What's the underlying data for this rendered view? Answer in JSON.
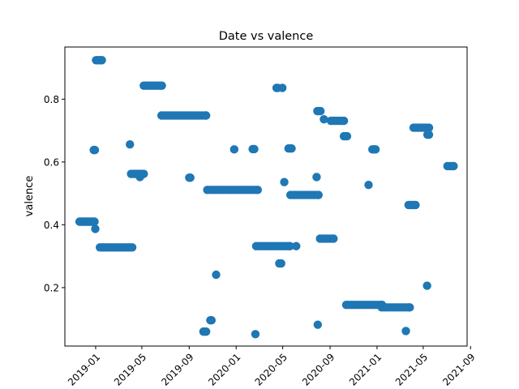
{
  "chart_data": {
    "type": "scatter",
    "title": "Date vs valence",
    "xlabel": "",
    "ylabel": "valence",
    "x_axis": "date",
    "xlim": [
      "2018-10-13",
      "2021-08-23"
    ],
    "ylim": [
      0.014,
      0.966
    ],
    "xticks": [
      "2019-01",
      "2019-05",
      "2019-09",
      "2020-01",
      "2020-05",
      "2020-09",
      "2021-01",
      "2021-05",
      "2021-09"
    ],
    "xtick_labels": [
      "2019-01",
      "2019-05",
      "2019-09",
      "2020-01",
      "2020-05",
      "2020-09",
      "2021-01",
      "2021-05",
      "2021-09"
    ],
    "yticks": [
      0.2,
      0.4,
      0.6,
      0.8
    ],
    "ytick_labels": [
      "0.2",
      "0.4",
      "0.6",
      "0.8"
    ],
    "grid": false,
    "legend": "none",
    "marker_color": "#1f77b4",
    "series": [
      {
        "points": [
          {
            "x": "2018-11-20",
            "y": 0.41
          },
          {
            "x": "2018-11-23",
            "y": 0.41
          },
          {
            "x": "2018-11-26",
            "y": 0.41
          },
          {
            "x": "2018-11-29",
            "y": 0.41
          },
          {
            "x": "2018-12-02",
            "y": 0.41
          },
          {
            "x": "2018-12-05",
            "y": 0.41
          },
          {
            "x": "2018-12-08",
            "y": 0.41
          },
          {
            "x": "2018-12-11",
            "y": 0.41
          },
          {
            "x": "2018-12-14",
            "y": 0.41
          },
          {
            "x": "2018-12-17",
            "y": 0.41
          },
          {
            "x": "2018-12-20",
            "y": 0.41
          },
          {
            "x": "2018-12-23",
            "y": 0.41
          },
          {
            "x": "2018-12-26",
            "y": 0.41
          },
          {
            "x": "2018-12-29",
            "y": 0.41
          },
          {
            "x": "2018-12-27",
            "y": 0.638
          },
          {
            "x": "2018-12-30",
            "y": 0.638
          },
          {
            "x": "2018-12-31",
            "y": 0.387
          },
          {
            "x": "2019-01-02",
            "y": 0.924
          },
          {
            "x": "2019-01-05",
            "y": 0.924
          },
          {
            "x": "2019-01-08",
            "y": 0.924
          },
          {
            "x": "2019-01-11",
            "y": 0.924
          },
          {
            "x": "2019-01-14",
            "y": 0.924
          },
          {
            "x": "2019-01-17",
            "y": 0.924
          },
          {
            "x": "2019-01-12",
            "y": 0.328
          },
          {
            "x": "2019-01-17",
            "y": 0.328
          },
          {
            "x": "2019-01-22",
            "y": 0.328
          },
          {
            "x": "2019-01-27",
            "y": 0.328
          },
          {
            "x": "2019-02-01",
            "y": 0.328
          },
          {
            "x": "2019-02-06",
            "y": 0.328
          },
          {
            "x": "2019-02-11",
            "y": 0.328
          },
          {
            "x": "2019-02-16",
            "y": 0.328
          },
          {
            "x": "2019-02-21",
            "y": 0.328
          },
          {
            "x": "2019-02-26",
            "y": 0.328
          },
          {
            "x": "2019-03-03",
            "y": 0.328
          },
          {
            "x": "2019-03-08",
            "y": 0.328
          },
          {
            "x": "2019-03-13",
            "y": 0.328
          },
          {
            "x": "2019-03-18",
            "y": 0.328
          },
          {
            "x": "2019-03-23",
            "y": 0.328
          },
          {
            "x": "2019-03-28",
            "y": 0.328
          },
          {
            "x": "2019-04-02",
            "y": 0.328
          },
          {
            "x": "2019-04-06",
            "y": 0.328
          },
          {
            "x": "2019-03-31",
            "y": 0.656
          },
          {
            "x": "2019-04-03",
            "y": 0.562
          },
          {
            "x": "2019-04-08",
            "y": 0.562
          },
          {
            "x": "2019-04-13",
            "y": 0.562
          },
          {
            "x": "2019-04-18",
            "y": 0.562
          },
          {
            "x": "2019-04-23",
            "y": 0.562
          },
          {
            "x": "2019-04-28",
            "y": 0.562
          },
          {
            "x": "2019-05-03",
            "y": 0.562
          },
          {
            "x": "2019-05-06",
            "y": 0.562
          },
          {
            "x": "2019-04-26",
            "y": 0.552
          },
          {
            "x": "2019-05-06",
            "y": 0.843
          },
          {
            "x": "2019-05-11",
            "y": 0.843
          },
          {
            "x": "2019-05-16",
            "y": 0.843
          },
          {
            "x": "2019-05-21",
            "y": 0.843
          },
          {
            "x": "2019-05-26",
            "y": 0.843
          },
          {
            "x": "2019-05-31",
            "y": 0.843
          },
          {
            "x": "2019-06-05",
            "y": 0.843
          },
          {
            "x": "2019-06-10",
            "y": 0.843
          },
          {
            "x": "2019-06-15",
            "y": 0.843
          },
          {
            "x": "2019-06-20",
            "y": 0.843
          },
          {
            "x": "2019-06-22",
            "y": 0.843
          },
          {
            "x": "2019-06-21",
            "y": 0.748
          },
          {
            "x": "2019-06-28",
            "y": 0.748
          },
          {
            "x": "2019-07-05",
            "y": 0.748
          },
          {
            "x": "2019-07-12",
            "y": 0.748
          },
          {
            "x": "2019-07-19",
            "y": 0.748
          },
          {
            "x": "2019-07-26",
            "y": 0.748
          },
          {
            "x": "2019-08-02",
            "y": 0.748
          },
          {
            "x": "2019-08-09",
            "y": 0.748
          },
          {
            "x": "2019-08-16",
            "y": 0.748
          },
          {
            "x": "2019-08-23",
            "y": 0.748
          },
          {
            "x": "2019-08-30",
            "y": 0.748
          },
          {
            "x": "2019-09-06",
            "y": 0.748
          },
          {
            "x": "2019-09-13",
            "y": 0.748
          },
          {
            "x": "2019-09-20",
            "y": 0.748
          },
          {
            "x": "2019-09-27",
            "y": 0.748
          },
          {
            "x": "2019-10-04",
            "y": 0.748
          },
          {
            "x": "2019-10-11",
            "y": 0.748
          },
          {
            "x": "2019-10-15",
            "y": 0.748
          },
          {
            "x": "2019-09-01",
            "y": 0.55
          },
          {
            "x": "2019-09-04",
            "y": 0.55
          },
          {
            "x": "2019-10-08",
            "y": 0.06
          },
          {
            "x": "2019-10-11",
            "y": 0.06
          },
          {
            "x": "2019-10-15",
            "y": 0.06
          },
          {
            "x": "2019-10-26",
            "y": 0.096
          },
          {
            "x": "2019-10-29",
            "y": 0.096
          },
          {
            "x": "2019-10-18",
            "y": 0.511
          },
          {
            "x": "2019-10-25",
            "y": 0.511
          },
          {
            "x": "2019-11-01",
            "y": 0.511
          },
          {
            "x": "2019-11-08",
            "y": 0.511
          },
          {
            "x": "2019-11-15",
            "y": 0.511
          },
          {
            "x": "2019-11-22",
            "y": 0.511
          },
          {
            "x": "2019-11-29",
            "y": 0.511
          },
          {
            "x": "2019-12-06",
            "y": 0.511
          },
          {
            "x": "2019-12-13",
            "y": 0.511
          },
          {
            "x": "2019-12-20",
            "y": 0.511
          },
          {
            "x": "2019-12-27",
            "y": 0.511
          },
          {
            "x": "2020-01-03",
            "y": 0.511
          },
          {
            "x": "2020-01-10",
            "y": 0.511
          },
          {
            "x": "2020-01-17",
            "y": 0.511
          },
          {
            "x": "2020-01-24",
            "y": 0.511
          },
          {
            "x": "2020-01-31",
            "y": 0.511
          },
          {
            "x": "2020-02-07",
            "y": 0.511
          },
          {
            "x": "2020-02-14",
            "y": 0.511
          },
          {
            "x": "2020-02-21",
            "y": 0.511
          },
          {
            "x": "2020-02-26",
            "y": 0.511
          },
          {
            "x": "2019-11-10",
            "y": 0.241
          },
          {
            "x": "2019-12-27",
            "y": 0.64
          },
          {
            "x": "2020-02-13",
            "y": 0.641
          },
          {
            "x": "2020-02-17",
            "y": 0.641
          },
          {
            "x": "2020-02-20",
            "y": 0.052
          },
          {
            "x": "2020-02-22",
            "y": 0.332
          },
          {
            "x": "2020-02-29",
            "y": 0.332
          },
          {
            "x": "2020-03-07",
            "y": 0.332
          },
          {
            "x": "2020-03-14",
            "y": 0.332
          },
          {
            "x": "2020-03-21",
            "y": 0.332
          },
          {
            "x": "2020-03-28",
            "y": 0.332
          },
          {
            "x": "2020-04-04",
            "y": 0.332
          },
          {
            "x": "2020-04-11",
            "y": 0.332
          },
          {
            "x": "2020-04-18",
            "y": 0.332
          },
          {
            "x": "2020-04-25",
            "y": 0.332
          },
          {
            "x": "2020-05-02",
            "y": 0.332
          },
          {
            "x": "2020-05-09",
            "y": 0.332
          },
          {
            "x": "2020-05-16",
            "y": 0.332
          },
          {
            "x": "2020-05-20",
            "y": 0.332
          },
          {
            "x": "2020-04-15",
            "y": 0.836
          },
          {
            "x": "2020-04-18",
            "y": 0.836
          },
          {
            "x": "2020-04-30",
            "y": 0.836
          },
          {
            "x": "2020-04-22",
            "y": 0.277
          },
          {
            "x": "2020-04-27",
            "y": 0.277
          },
          {
            "x": "2020-05-05",
            "y": 0.536
          },
          {
            "x": "2020-05-16",
            "y": 0.643
          },
          {
            "x": "2020-05-21",
            "y": 0.643
          },
          {
            "x": "2020-05-24",
            "y": 0.643
          },
          {
            "x": "2020-05-21",
            "y": 0.495
          },
          {
            "x": "2020-05-28",
            "y": 0.495
          },
          {
            "x": "2020-06-04",
            "y": 0.495
          },
          {
            "x": "2020-06-11",
            "y": 0.495
          },
          {
            "x": "2020-06-18",
            "y": 0.495
          },
          {
            "x": "2020-06-25",
            "y": 0.495
          },
          {
            "x": "2020-07-02",
            "y": 0.495
          },
          {
            "x": "2020-07-09",
            "y": 0.495
          },
          {
            "x": "2020-07-16",
            "y": 0.495
          },
          {
            "x": "2020-07-23",
            "y": 0.495
          },
          {
            "x": "2020-07-30",
            "y": 0.495
          },
          {
            "x": "2020-08-02",
            "y": 0.495
          },
          {
            "x": "2020-06-05",
            "y": 0.332
          },
          {
            "x": "2020-07-28",
            "y": 0.552
          },
          {
            "x": "2020-07-31",
            "y": 0.082
          },
          {
            "x": "2020-07-30",
            "y": 0.762
          },
          {
            "x": "2020-08-03",
            "y": 0.762
          },
          {
            "x": "2020-08-07",
            "y": 0.762
          },
          {
            "x": "2020-08-16",
            "y": 0.736
          },
          {
            "x": "2020-08-06",
            "y": 0.356
          },
          {
            "x": "2020-08-12",
            "y": 0.356
          },
          {
            "x": "2020-08-18",
            "y": 0.356
          },
          {
            "x": "2020-08-24",
            "y": 0.356
          },
          {
            "x": "2020-08-30",
            "y": 0.356
          },
          {
            "x": "2020-09-05",
            "y": 0.356
          },
          {
            "x": "2020-09-10",
            "y": 0.356
          },
          {
            "x": "2020-09-03",
            "y": 0.731
          },
          {
            "x": "2020-09-09",
            "y": 0.731
          },
          {
            "x": "2020-09-15",
            "y": 0.731
          },
          {
            "x": "2020-09-21",
            "y": 0.731
          },
          {
            "x": "2020-09-27",
            "y": 0.731
          },
          {
            "x": "2020-10-03",
            "y": 0.731
          },
          {
            "x": "2020-10-07",
            "y": 0.731
          },
          {
            "x": "2020-10-07",
            "y": 0.682
          },
          {
            "x": "2020-10-11",
            "y": 0.682
          },
          {
            "x": "2020-10-15",
            "y": 0.682
          },
          {
            "x": "2020-10-13",
            "y": 0.145
          },
          {
            "x": "2020-10-20",
            "y": 0.145
          },
          {
            "x": "2020-10-27",
            "y": 0.145
          },
          {
            "x": "2020-11-03",
            "y": 0.145
          },
          {
            "x": "2020-11-10",
            "y": 0.145
          },
          {
            "x": "2020-11-17",
            "y": 0.145
          },
          {
            "x": "2020-11-24",
            "y": 0.145
          },
          {
            "x": "2020-12-01",
            "y": 0.145
          },
          {
            "x": "2020-12-08",
            "y": 0.145
          },
          {
            "x": "2020-12-15",
            "y": 0.145
          },
          {
            "x": "2020-12-22",
            "y": 0.145
          },
          {
            "x": "2020-12-29",
            "y": 0.145
          },
          {
            "x": "2021-01-05",
            "y": 0.145
          },
          {
            "x": "2021-01-12",
            "y": 0.145
          },
          {
            "x": "2021-01-14",
            "y": 0.145
          },
          {
            "x": "2020-12-10",
            "y": 0.527
          },
          {
            "x": "2020-12-20",
            "y": 0.64
          },
          {
            "x": "2020-12-24",
            "y": 0.64
          },
          {
            "x": "2020-12-28",
            "y": 0.64
          },
          {
            "x": "2021-01-13",
            "y": 0.137
          },
          {
            "x": "2021-01-20",
            "y": 0.137
          },
          {
            "x": "2021-01-27",
            "y": 0.137
          },
          {
            "x": "2021-02-03",
            "y": 0.137
          },
          {
            "x": "2021-02-10",
            "y": 0.137
          },
          {
            "x": "2021-02-17",
            "y": 0.137
          },
          {
            "x": "2021-02-24",
            "y": 0.137
          },
          {
            "x": "2021-03-03",
            "y": 0.137
          },
          {
            "x": "2021-03-10",
            "y": 0.137
          },
          {
            "x": "2021-03-17",
            "y": 0.137
          },
          {
            "x": "2021-03-24",
            "y": 0.137
          },
          {
            "x": "2021-03-27",
            "y": 0.137
          },
          {
            "x": "2021-03-17",
            "y": 0.062
          },
          {
            "x": "2021-03-24",
            "y": 0.463
          },
          {
            "x": "2021-03-29",
            "y": 0.463
          },
          {
            "x": "2021-04-03",
            "y": 0.463
          },
          {
            "x": "2021-04-08",
            "y": 0.463
          },
          {
            "x": "2021-04-11",
            "y": 0.463
          },
          {
            "x": "2021-04-06",
            "y": 0.709
          },
          {
            "x": "2021-04-12",
            "y": 0.709
          },
          {
            "x": "2021-04-18",
            "y": 0.709
          },
          {
            "x": "2021-04-24",
            "y": 0.709
          },
          {
            "x": "2021-04-30",
            "y": 0.709
          },
          {
            "x": "2021-05-06",
            "y": 0.709
          },
          {
            "x": "2021-05-12",
            "y": 0.709
          },
          {
            "x": "2021-05-16",
            "y": 0.709
          },
          {
            "x": "2021-05-12",
            "y": 0.687
          },
          {
            "x": "2021-05-16",
            "y": 0.687
          },
          {
            "x": "2021-05-11",
            "y": 0.206
          },
          {
            "x": "2021-07-03",
            "y": 0.587
          },
          {
            "x": "2021-07-09",
            "y": 0.587
          },
          {
            "x": "2021-07-15",
            "y": 0.587
          },
          {
            "x": "2021-07-19",
            "y": 0.587
          }
        ]
      }
    ]
  }
}
